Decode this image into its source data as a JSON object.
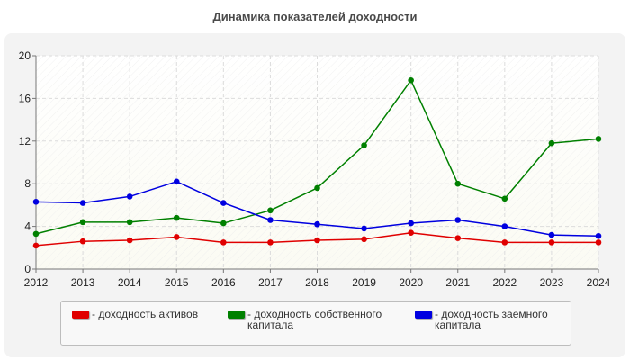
{
  "chart_data": {
    "type": "line",
    "title": "Динамика показателей доходности",
    "xlabel": "",
    "ylabel": "",
    "categories": [
      "2012",
      "2013",
      "2014",
      "2015",
      "2016",
      "2017",
      "2018",
      "2019",
      "2020",
      "2021",
      "2022",
      "2023",
      "2024"
    ],
    "ylim": [
      0,
      20
    ],
    "yticks": [
      0,
      4,
      8,
      12,
      16,
      20
    ],
    "grid": true,
    "legend_position": "bottom",
    "series": [
      {
        "name": "- доходность активов",
        "color": "#e00000",
        "values": [
          2.2,
          2.6,
          2.7,
          3.0,
          2.5,
          2.5,
          2.7,
          2.8,
          3.4,
          2.9,
          2.5,
          2.5,
          2.5
        ]
      },
      {
        "name": "- доходность собственного капитала",
        "color": "#008000",
        "values": [
          3.3,
          4.4,
          4.4,
          4.8,
          4.3,
          5.5,
          7.6,
          11.6,
          17.7,
          8.0,
          6.6,
          11.8,
          12.2
        ]
      },
      {
        "name": "- доходность заемного капитала",
        "color": "#0000e0",
        "values": [
          6.3,
          6.2,
          6.8,
          8.2,
          6.2,
          4.6,
          4.2,
          3.8,
          4.3,
          4.6,
          4.0,
          3.2,
          3.1
        ]
      }
    ]
  }
}
